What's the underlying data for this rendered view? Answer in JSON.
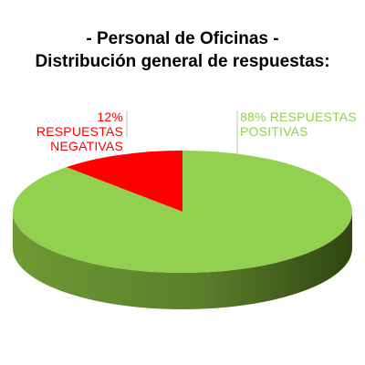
{
  "chart_data": {
    "type": "pie",
    "title": "- Personal de Oficinas -",
    "subtitle": "Distribución general de respuestas:",
    "style": "3d",
    "slices": [
      {
        "key": "negative",
        "value": 12,
        "label_lines": [
          "12% RESPUESTAS",
          "NEGATIVAS"
        ],
        "color": "#ff0000",
        "side_color": "#9a0000"
      },
      {
        "key": "positive",
        "value": 88,
        "label_lines": [
          "88% RESPUESTAS",
          "POSITIVAS"
        ],
        "color": "#92d050",
        "side_color": "#3f5a1c"
      }
    ],
    "leader_line_color": "#bfbfbf"
  }
}
